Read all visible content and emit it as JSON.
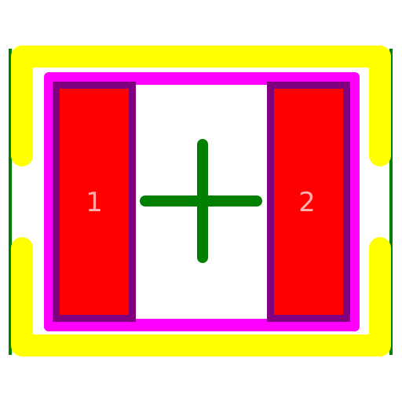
{
  "footprint": {
    "colors": {
      "background": "#ffffff",
      "courtyard": "#008000",
      "silkscreen": "#ffff00",
      "fab_outline": "#ff00ff",
      "pad_outline": "#800080",
      "pad": "#ff0000",
      "pad_label": "#ffb0b0",
      "origin_marker": "#008000"
    },
    "pads": [
      {
        "number": "1"
      },
      {
        "number": "2"
      }
    ],
    "origin_marker_icon": "crosshair-icon"
  }
}
